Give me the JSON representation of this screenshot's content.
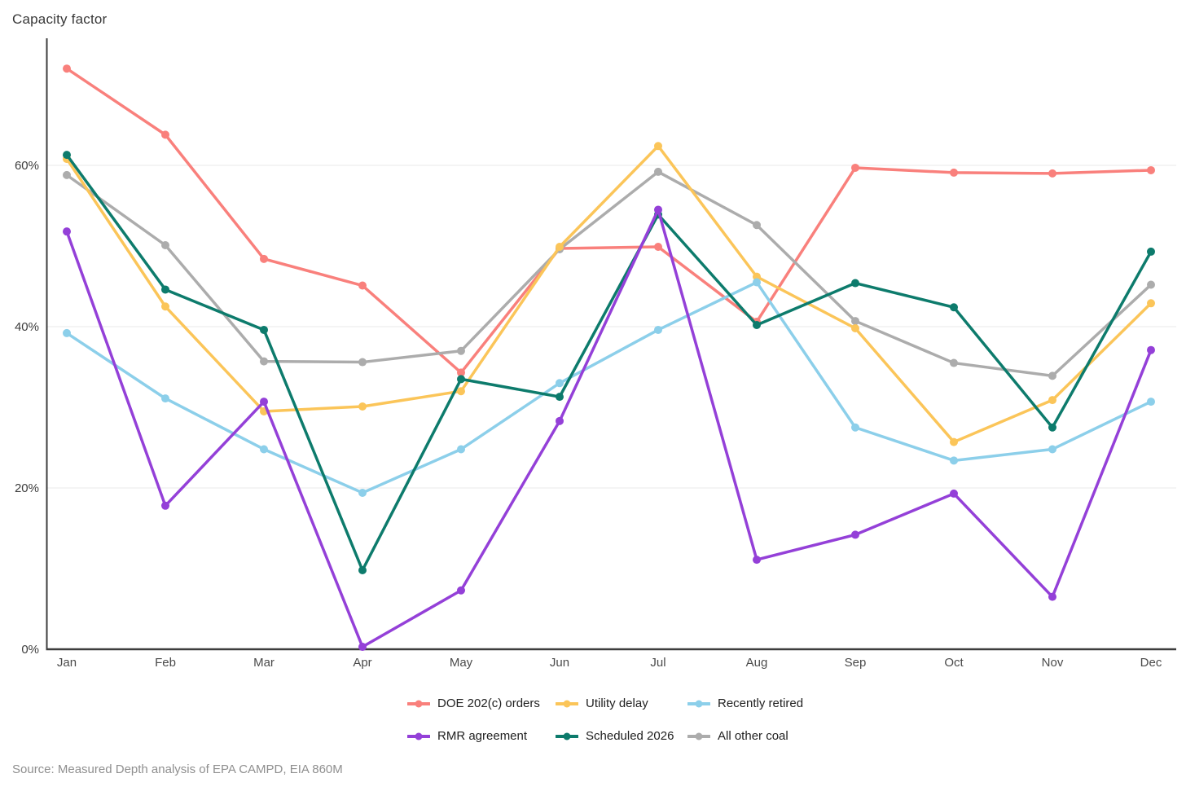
{
  "chart": {
    "title": "Capacity factor",
    "source": "Source: Measured Depth analysis of EPA CAMPD, EIA 860M"
  },
  "chart_data": {
    "type": "line",
    "title": "Capacity factor",
    "xlabel": "",
    "ylabel": "Capacity factor",
    "x_categories": [
      "Jan",
      "Feb",
      "Mar",
      "Apr",
      "May",
      "Jun",
      "Jul",
      "Aug",
      "Sep",
      "Oct",
      "Nov",
      "Dec"
    ],
    "y_tick_labels": [
      "0%",
      "20%",
      "40%",
      "60%"
    ],
    "y_tick_values": [
      0,
      20,
      40,
      60
    ],
    "ylim": [
      0,
      76
    ],
    "grid": "horizontal",
    "legend_position": "bottom",
    "colors": {
      "axis": "#3c3c3c",
      "gridline": "#e8e8e8",
      "tick_text": "#3d3d3d",
      "month_text": "#4a4a4a"
    },
    "series": [
      {
        "name": "DOE 202(c) orders",
        "color": "#F9807C",
        "values": [
          72.0,
          63.8,
          48.4,
          45.1,
          34.3,
          49.7,
          49.9,
          40.6,
          59.7,
          59.1,
          59.0,
          59.4
        ]
      },
      {
        "name": "Utility delay",
        "color": "#FBC559",
        "values": [
          60.8,
          42.5,
          29.5,
          30.1,
          32.0,
          49.9,
          62.4,
          46.2,
          39.8,
          25.7,
          30.9,
          42.9
        ]
      },
      {
        "name": "Recently retired",
        "color": "#8CCFEA",
        "values": [
          39.2,
          31.1,
          24.8,
          19.4,
          24.8,
          33.0,
          39.6,
          45.5,
          27.5,
          23.4,
          24.8,
          30.7
        ]
      },
      {
        "name": "RMR agreement",
        "color": "#9440D8",
        "values": [
          51.8,
          17.8,
          30.7,
          0.3,
          7.3,
          28.3,
          54.5,
          11.1,
          14.2,
          19.3,
          6.5,
          37.1
        ]
      },
      {
        "name": "Scheduled 2026",
        "color": "#0D7B6C",
        "values": [
          61.3,
          44.6,
          39.6,
          9.8,
          33.5,
          31.3,
          53.9,
          40.2,
          45.4,
          42.4,
          27.5,
          49.3
        ]
      },
      {
        "name": "All other coal",
        "color": "#ACACAC",
        "values": [
          58.8,
          50.1,
          35.7,
          35.6,
          37.0,
          49.6,
          59.2,
          52.6,
          40.7,
          35.5,
          33.9,
          45.2
        ]
      }
    ],
    "draw_order": [
      0,
      5,
      1,
      2,
      4,
      3
    ],
    "legend_order": [
      0,
      1,
      2,
      3,
      4,
      5
    ],
    "source": "Source: Measured Depth analysis of EPA CAMPD, EIA 860M"
  }
}
